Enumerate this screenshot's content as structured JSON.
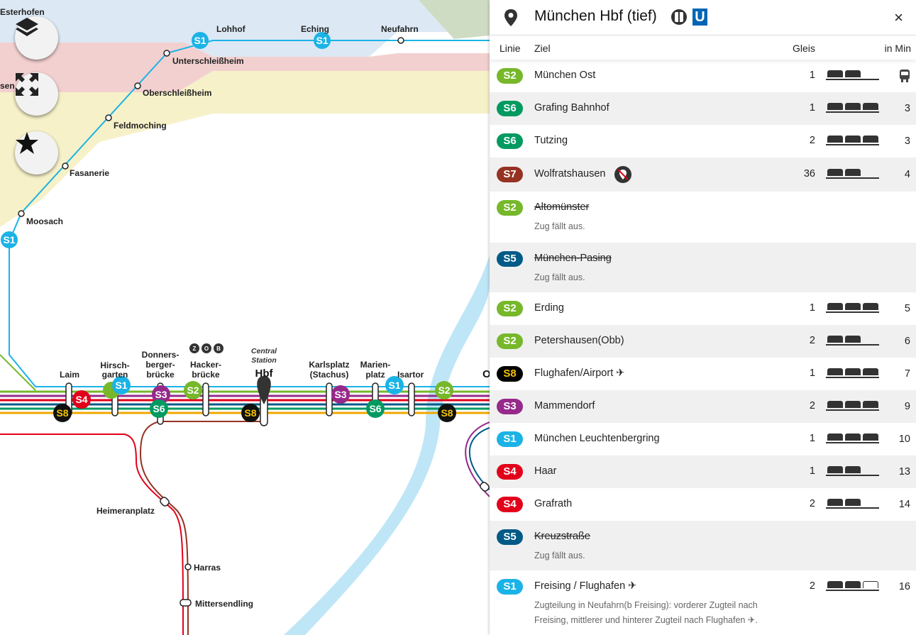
{
  "header": {
    "title": "München Hbf (tief)",
    "close_label": "×",
    "icons": [
      "location-pin-icon",
      "elevator-icon",
      "ubahn-icon"
    ],
    "ubahn_label": "U"
  },
  "columns": {
    "linie": "Linie",
    "ziel": "Ziel",
    "gleis": "Gleis",
    "min": "in Min"
  },
  "line_colors": {
    "S1": "#1bb3e6",
    "S2": "#76b82a",
    "S3": "#962a8b",
    "S4": "#e2001a",
    "S5": "#005a87",
    "S6": "#009a61",
    "S7": "#963222",
    "S8": "#000000"
  },
  "departures": [
    {
      "line": "S2",
      "dest": "München Ost",
      "gleis": "1",
      "occupancy": 2,
      "min": "",
      "arriving_icon": "train-icon"
    },
    {
      "line": "S6",
      "dest": "Grafing Bahnhof",
      "gleis": "1",
      "occupancy": 3,
      "min": "3"
    },
    {
      "line": "S6",
      "dest": "Tutzing",
      "gleis": "2",
      "occupancy": 3,
      "min": "3"
    },
    {
      "line": "S7",
      "dest": "Wolfratshausen",
      "gleis": "36",
      "occupancy": 2,
      "min": "4",
      "extra_icon": "no-stop-icon"
    },
    {
      "line": "S2",
      "dest": "Altomünster",
      "cancelled": true,
      "note": "Zug fällt aus."
    },
    {
      "line": "S5",
      "dest": "München-Pasing",
      "cancelled": true,
      "note": "Zug fällt aus."
    },
    {
      "line": "S2",
      "dest": "Erding",
      "gleis": "1",
      "occupancy": 3,
      "min": "5"
    },
    {
      "line": "S2",
      "dest": "Petershausen(Obb)",
      "gleis": "2",
      "occupancy": 2,
      "min": "6"
    },
    {
      "line": "S8",
      "dest": "Flughafen/Airport ✈",
      "gleis": "1",
      "occupancy": 3,
      "min": "7"
    },
    {
      "line": "S3",
      "dest": "Mammendorf",
      "gleis": "2",
      "occupancy": 3,
      "min": "9"
    },
    {
      "line": "S1",
      "dest": "München Leuchtenbergring",
      "gleis": "1",
      "occupancy": 3,
      "min": "10"
    },
    {
      "line": "S4",
      "dest": "Haar",
      "gleis": "1",
      "occupancy": 2,
      "min": "13"
    },
    {
      "line": "S4",
      "dest": "Grafrath",
      "gleis": "2",
      "occupancy": 2,
      "min": "14"
    },
    {
      "line": "S5",
      "dest": "Kreuzstraße",
      "cancelled": true,
      "note": "Zug fällt aus."
    },
    {
      "line": "S1",
      "dest": "Freising / Flughafen ✈",
      "gleis": "2",
      "occupancy": 2,
      "occupancy_empty": 1,
      "min": "16",
      "note": "Zugteilung in Neufahrn(b Freising): vorderer Zugteil nach Freising, mittlerer und hinterer Zugteil nach Flughafen ✈."
    }
  ],
  "map": {
    "buttons": [
      "layers-icon",
      "fullscreen-icon",
      "favorites-star-icon"
    ],
    "stations": {
      "esterhofen": "Esterhofen",
      "lohhof": "Lohhof",
      "eching": "Eching",
      "neufahrn": "Neufahrn",
      "unterschleissheim": "Unterschleißheim",
      "oberschleissheim": "Oberschleißheim",
      "feldmoching": "Feldmoching",
      "fasanerie": "Fasanerie",
      "moosach": "Moosach",
      "sen": "sen",
      "laim": "Laim",
      "hirschgarten": [
        "Hirsch-",
        "garten"
      ],
      "donnersberger": [
        "Donners-",
        "berger-",
        "brücke"
      ],
      "hacker": [
        "Hacker-",
        "brücke"
      ],
      "central": [
        "Central",
        "Station"
      ],
      "hbf": "Hbf",
      "karlsplatz": [
        "Karlsplatz",
        "(Stachus)"
      ],
      "marien": [
        "Marien-",
        "platz"
      ],
      "isartor": "Isartor",
      "ost_partial": "O",
      "heimeranplatz": "Heimeranplatz",
      "harras": "Harras",
      "mittersendling": "Mittersendling",
      "zob": [
        "Z",
        "O",
        "B"
      ]
    }
  }
}
